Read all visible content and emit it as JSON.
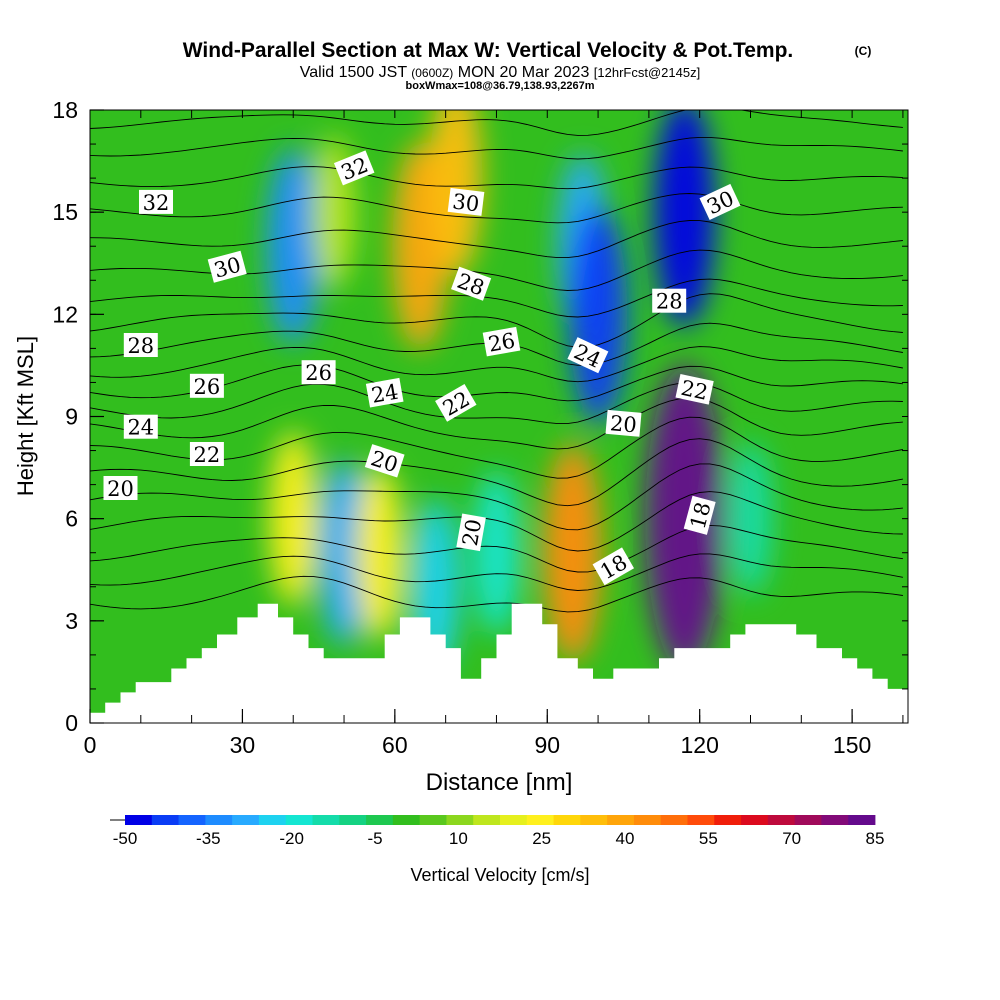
{
  "header": {
    "title": "Wind-Parallel Section at Max W: Vertical Velocity & Pot.Temp.",
    "copyright": "(C)",
    "valid_prefix": "Valid 1500 JST",
    "valid_utc": "(0600Z)",
    "valid_date": "MON 20 Mar 2023",
    "forecast": "[12hrFcst@2145z]",
    "box_info": "boxWmax=108@36.79,138.93,2267m"
  },
  "chart_data": {
    "type": "heatmap",
    "xlabel": "Distance [nm]",
    "ylabel": "Height [Kft MSL]",
    "xlim": [
      0,
      161
    ],
    "ylim": [
      0,
      18
    ],
    "x_ticks": [
      0,
      30,
      60,
      90,
      120,
      150
    ],
    "y_ticks": [
      0,
      3,
      6,
      9,
      12,
      15,
      18
    ],
    "colorbar": {
      "label": "Vertical Velocity [cm/s]",
      "ticks": [
        -50,
        -35,
        -20,
        -5,
        10,
        25,
        40,
        55,
        70,
        85
      ],
      "levels": [
        -50,
        -45,
        -40,
        -35,
        -30,
        -25,
        -20,
        -15,
        -10,
        -5,
        0,
        5,
        10,
        15,
        20,
        25,
        30,
        35,
        40,
        45,
        50,
        55,
        60,
        65,
        70,
        75,
        80,
        85
      ],
      "colors": [
        "#0000e6",
        "#0a3cf5",
        "#1464ff",
        "#1e8cff",
        "#28aaff",
        "#1ed2f0",
        "#14e6d2",
        "#14dcaa",
        "#14d282",
        "#1ec850",
        "#32be1e",
        "#5ac81e",
        "#8cd71e",
        "#bee61e",
        "#e6f01e",
        "#fff01e",
        "#ffd70a",
        "#ffbe0a",
        "#ffa50a",
        "#ff8c0a",
        "#ff6e0a",
        "#ff4b0a",
        "#f01e0a",
        "#dc0a1e",
        "#be0a3c",
        "#a00a5a",
        "#820a78",
        "#640a8c"
      ]
    },
    "velocity_features": [
      {
        "x": 40,
        "y": 14,
        "w": -35
      },
      {
        "x": 48,
        "y": 15,
        "w": 15
      },
      {
        "x": 65,
        "y": 14,
        "w": 40
      },
      {
        "x": 72,
        "y": 16,
        "w": 35
      },
      {
        "x": 97,
        "y": 14,
        "w": -30
      },
      {
        "x": 100,
        "y": 12,
        "w": -45
      },
      {
        "x": 117,
        "y": 15,
        "w": -50
      },
      {
        "x": 40,
        "y": 6,
        "w": 25
      },
      {
        "x": 50,
        "y": 5,
        "w": -30
      },
      {
        "x": 57,
        "y": 5,
        "w": 25
      },
      {
        "x": 68,
        "y": 4,
        "w": -25
      },
      {
        "x": 80,
        "y": 5,
        "w": -20
      },
      {
        "x": 95,
        "y": 5,
        "w": 45
      },
      {
        "x": 117,
        "y": 6,
        "w": 85
      },
      {
        "x": 130,
        "y": 6,
        "w": -15
      }
    ],
    "theta_contour_labels": [
      {
        "text": "32",
        "x": 13,
        "y": 15.3,
        "angle": 0
      },
      {
        "text": "32",
        "x": 52,
        "y": 16.3,
        "angle": -22
      },
      {
        "text": "30",
        "x": 27,
        "y": 13.4,
        "angle": -15
      },
      {
        "text": "30",
        "x": 74,
        "y": 15.3,
        "angle": 7
      },
      {
        "text": "30",
        "x": 124,
        "y": 15.3,
        "angle": -25
      },
      {
        "text": "28",
        "x": 10,
        "y": 11.1,
        "angle": 0
      },
      {
        "text": "28",
        "x": 75,
        "y": 12.9,
        "angle": 20
      },
      {
        "text": "28",
        "x": 114,
        "y": 12.4,
        "angle": 0
      },
      {
        "text": "26",
        "x": 23,
        "y": 9.9,
        "angle": 0
      },
      {
        "text": "26",
        "x": 45,
        "y": 10.3,
        "angle": 0
      },
      {
        "text": "26",
        "x": 81,
        "y": 11.2,
        "angle": -10
      },
      {
        "text": "24",
        "x": 98,
        "y": 10.8,
        "angle": 25
      },
      {
        "text": "24",
        "x": 10,
        "y": 8.7,
        "angle": 0
      },
      {
        "text": "24",
        "x": 58,
        "y": 9.7,
        "angle": -10
      },
      {
        "text": "22",
        "x": 23,
        "y": 7.9,
        "angle": 0
      },
      {
        "text": "22",
        "x": 72,
        "y": 9.4,
        "angle": -30
      },
      {
        "text": "22",
        "x": 119,
        "y": 9.8,
        "angle": 12
      },
      {
        "text": "20",
        "x": 6,
        "y": 6.9,
        "angle": 0
      },
      {
        "text": "20",
        "x": 58,
        "y": 7.7,
        "angle": 18
      },
      {
        "text": "20",
        "x": 105,
        "y": 8.8,
        "angle": 5
      },
      {
        "text": "20",
        "x": 75,
        "y": 5.6,
        "angle": -80
      },
      {
        "text": "18",
        "x": 103,
        "y": 4.6,
        "angle": -30
      },
      {
        "text": "18",
        "x": 120,
        "y": 6.1,
        "angle": -75
      }
    ]
  }
}
